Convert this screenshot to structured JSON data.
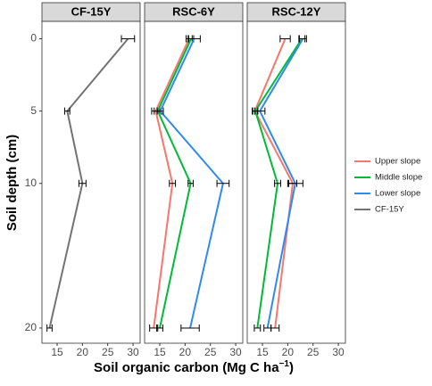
{
  "chart_data": {
    "type": "line",
    "y_label": "Soil depth (cm)",
    "x_label": "Soil organic carbon (Mg C ha",
    "x_label_sup": "−1",
    "x_label_end": ")",
    "depths": [
      0,
      5,
      10,
      20
    ],
    "ylim": [
      -1.2,
      21.05
    ],
    "y_reversed": true,
    "yticks": [
      0,
      5,
      10,
      20
    ],
    "xlim": [
      12,
      31.4
    ],
    "xticks": [
      15,
      20,
      25,
      30
    ],
    "facets": [
      {
        "title": "CF-15Y",
        "series": [
          {
            "name": "CF-15Y",
            "color": "#737373",
            "values": [
              29,
              17,
              20,
              13.5
            ],
            "errors": [
              1.3,
              0.5,
              0.7,
              0.5
            ]
          }
        ]
      },
      {
        "title": "RSC-6Y",
        "series": [
          {
            "name": "Upper slope",
            "color": "#F8766D",
            "values": [
              20.8,
              14.2,
              17.5,
              13.8
            ],
            "errors": [
              0.6,
              0.8,
              0.6,
              0.8
            ]
          },
          {
            "name": "Middle slope",
            "color": "#00BA38",
            "values": [
              21.2,
              14.6,
              21.1,
              15
            ],
            "errors": [
              0.5,
              0.7,
              0.5,
              0.6
            ]
          },
          {
            "name": "Lower slope",
            "color": "#2E8BF0",
            "values": [
              21.8,
              15.1,
              27.5,
              21
            ],
            "errors": [
              1.2,
              0.6,
              1.2,
              1.8
            ]
          }
        ]
      },
      {
        "title": "RSC-12Y",
        "series": [
          {
            "name": "Upper slope",
            "color": "#F8766D",
            "values": [
              19.5,
              13.5,
              21,
              17.5
            ],
            "errors": [
              1,
              0.5,
              0.8,
              0.8
            ]
          },
          {
            "name": "Middle slope",
            "color": "#00BA38",
            "values": [
              22.8,
              13.6,
              18,
              14
            ],
            "errors": [
              0.6,
              0.5,
              0.6,
              0.6
            ]
          },
          {
            "name": "Lower slope",
            "color": "#2E8BF0",
            "values": [
              23,
              14.5,
              21.5,
              16
            ],
            "errors": [
              0.7,
              1,
              1.5,
              0.7
            ]
          }
        ]
      }
    ]
  }
}
